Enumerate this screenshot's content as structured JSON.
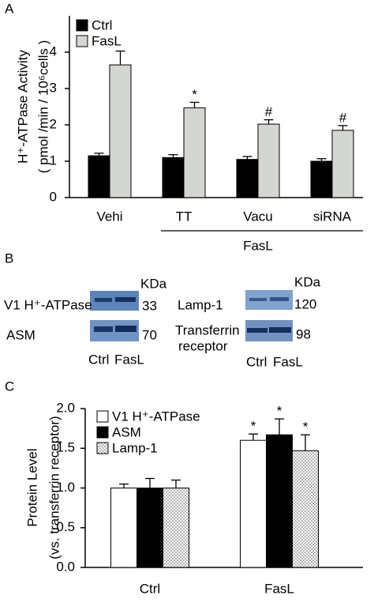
{
  "panels": [
    "A",
    "B",
    "C"
  ],
  "chart_data": [
    {
      "type": "bar",
      "ylabel": [
        "H⁺-ATPase Activity",
        "( pmol /min / 10⁶cells )"
      ],
      "categories": [
        "Vehi",
        "TT",
        "Vacu",
        "siRNA"
      ],
      "x_group": {
        "label": "FasL",
        "span": [
          1,
          3
        ]
      },
      "series": [
        {
          "name": "Ctrl",
          "color": "#000000",
          "values": [
            1.15,
            1.1,
            1.05,
            1.0
          ],
          "errors": [
            0.07,
            0.08,
            0.08,
            0.07
          ],
          "marks": [
            null,
            null,
            null,
            null
          ]
        },
        {
          "name": "FasL",
          "color": "#d4d6d2",
          "values": [
            3.65,
            2.47,
            2.02,
            1.85
          ],
          "errors": [
            0.38,
            0.15,
            0.12,
            0.13
          ],
          "marks": [
            null,
            "*",
            "#",
            "#"
          ]
        }
      ],
      "ylim": [
        0,
        5
      ],
      "yticks": [
        0,
        1,
        2,
        3,
        4
      ],
      "legend": "upper left"
    },
    {
      "type": "bar",
      "ylabel": [
        "Protein Level",
        "(vs. transferrin receptor)"
      ],
      "categories": [
        "Ctrl",
        "FasL"
      ],
      "series": [
        {
          "name": "V1 H⁺-ATPase",
          "color": "#ffffff",
          "values": [
            1.0,
            1.6
          ],
          "errors": [
            0.05,
            0.08
          ],
          "marks": [
            null,
            "*"
          ]
        },
        {
          "name": "ASM",
          "color": "#000000",
          "values": [
            1.0,
            1.67
          ],
          "errors": [
            0.12,
            0.2
          ],
          "marks": [
            null,
            "*"
          ]
        },
        {
          "name": "Lamp-1",
          "color": "#ffffff",
          "fill_pattern": "dots",
          "values": [
            1.0,
            1.47
          ],
          "errors": [
            0.1,
            0.2
          ],
          "marks": [
            null,
            "*"
          ]
        }
      ],
      "ylim": [
        0,
        2
      ],
      "yticks": [
        {
          "value": 0,
          "label": "0.0"
        },
        0.5,
        {
          "value": 1,
          "label": "1.0"
        },
        1.5,
        {
          "value": 2,
          "label": "2.0"
        }
      ],
      "legend": "upper left"
    }
  ],
  "blots": {
    "left": {
      "unit": "KDa",
      "rows": [
        {
          "label": "V1 H⁺-ATPase",
          "kda": "33"
        },
        {
          "label": "ASM",
          "kda": "70"
        }
      ],
      "lanes": [
        "Ctrl",
        "FasL"
      ]
    },
    "right": {
      "unit": "KDa",
      "rows": [
        {
          "label": "Lamp-1",
          "kda": "120"
        },
        {
          "label": [
            "Transferrin",
            "receptor"
          ],
          "kda": "98"
        }
      ],
      "lanes": [
        "Ctrl",
        "FasL"
      ]
    }
  }
}
